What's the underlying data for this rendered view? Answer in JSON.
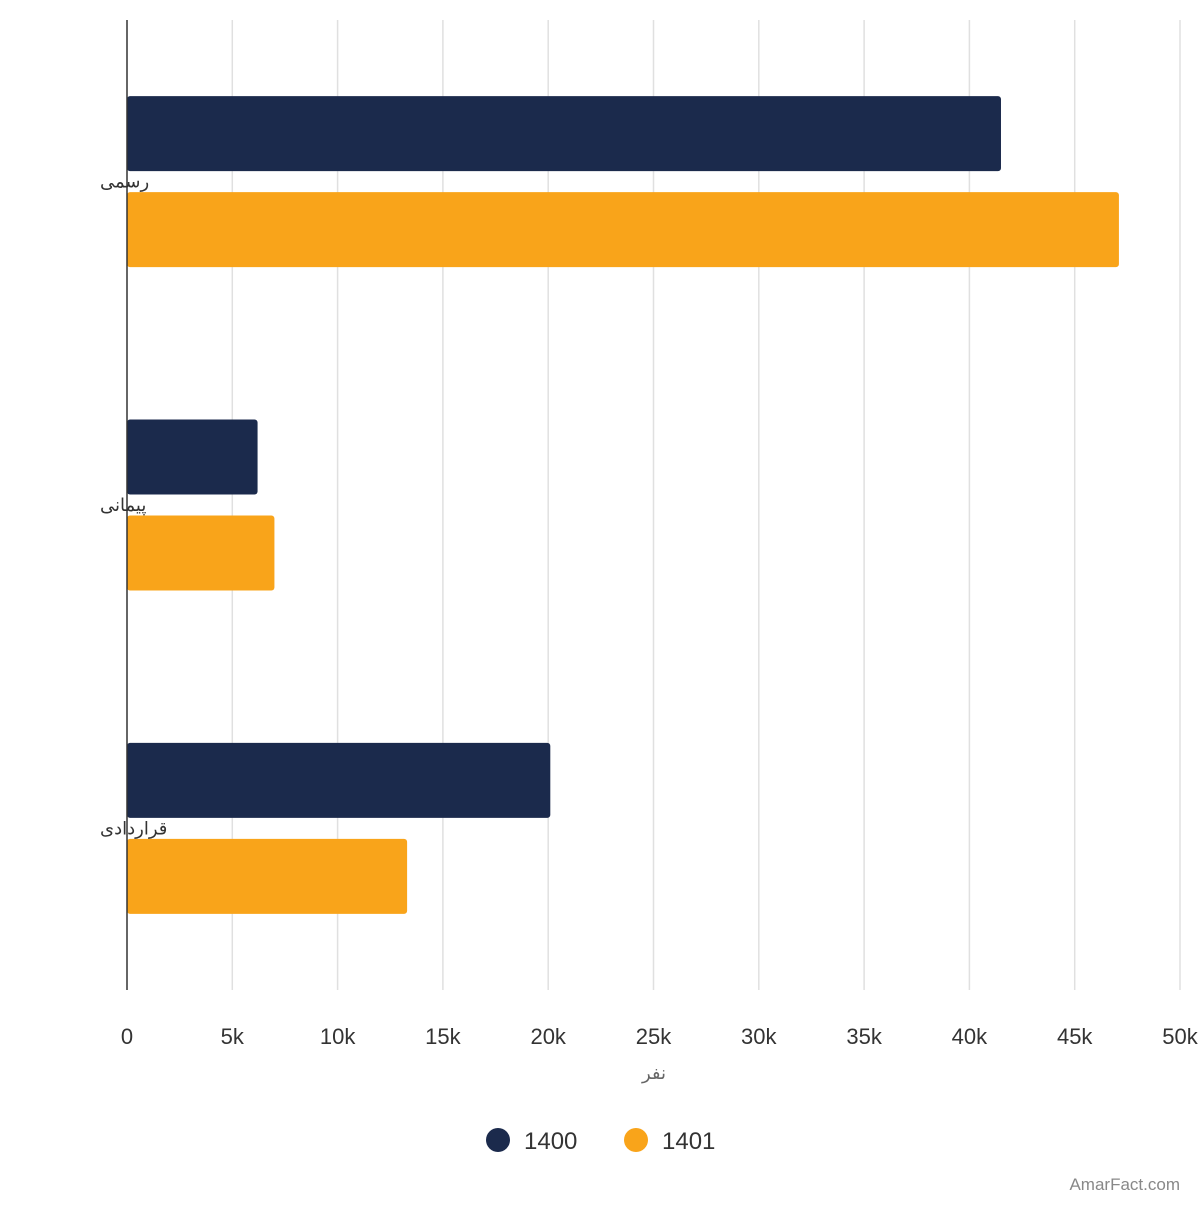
{
  "chart_data": {
    "type": "bar",
    "orientation": "horizontal",
    "categories": [
      "رسمی",
      "پیمانی",
      "قراردادی"
    ],
    "series": [
      {
        "name": "1400",
        "color": "#1b2a4c",
        "values": [
          41500,
          6200,
          20100
        ]
      },
      {
        "name": "1401",
        "color": "#f9a41a",
        "values": [
          47100,
          7000,
          13300
        ]
      }
    ],
    "xlabel": "نفر",
    "ylabel": "",
    "xlim": [
      0,
      50000
    ],
    "ticks": [
      "0",
      "5k",
      "10k",
      "15k",
      "20k",
      "25k",
      "30k",
      "35k",
      "40k",
      "45k",
      "50k"
    ],
    "grid": true,
    "legend_position": "bottom"
  },
  "watermark": "AmarFact.com"
}
